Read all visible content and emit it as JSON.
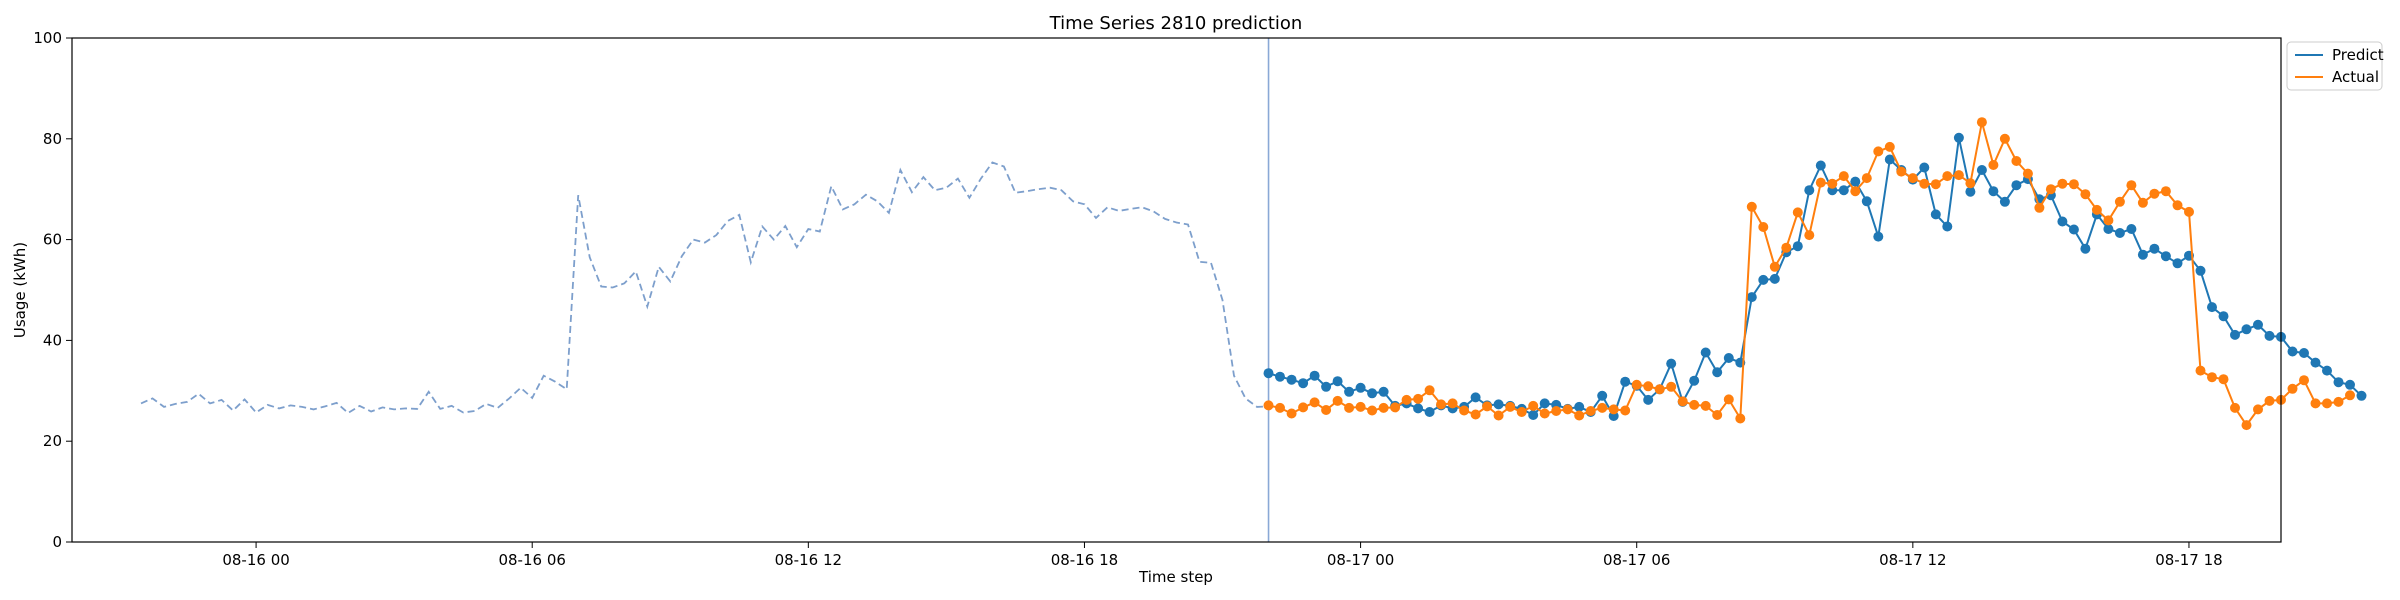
{
  "chart_data": {
    "type": "line",
    "title": "Time Series 2810 prediction",
    "xlabel": "Time step",
    "ylabel": "Usage (kWh)",
    "ylim": [
      0,
      100
    ],
    "yticks": [
      0,
      20,
      40,
      60,
      80,
      100
    ],
    "x_range_hours": [
      -4,
      44
    ],
    "xticks": [
      {
        "hour": 0,
        "label": "08-16 00"
      },
      {
        "hour": 6,
        "label": "08-16 06"
      },
      {
        "hour": 12,
        "label": "08-16 12"
      },
      {
        "hour": 18,
        "label": "08-16 18"
      },
      {
        "hour": 24,
        "label": "08-17 00"
      },
      {
        "hour": 30,
        "label": "08-17 06"
      },
      {
        "hour": 36,
        "label": "08-17 12"
      },
      {
        "hour": 42,
        "label": "08-17 18"
      }
    ],
    "forecast_start_hour": 22,
    "legend": {
      "position": "top-right outside",
      "entries": [
        "Predict",
        "Actual"
      ]
    },
    "colors": {
      "history": "#7d9fcc",
      "predict": "#1f77b4",
      "actual": "#ff7f0e",
      "divider": "#8aa8d6"
    },
    "series": [
      {
        "role": "history",
        "start_hour": -2.5,
        "step_hours": 0.25,
        "values": [
          27.5,
          28.5,
          26.8,
          27.4,
          27.8,
          29.4,
          27.5,
          28.2,
          26.1,
          28.3,
          25.7,
          27.2,
          26.5,
          27.1,
          26.8,
          26.3,
          26.9,
          27.6,
          25.6,
          27.0,
          25.9,
          26.7,
          26.3,
          26.5,
          26.4,
          29.8,
          26.4,
          27.0,
          25.7,
          26.0,
          27.4,
          26.6,
          28.5,
          30.6,
          28.6,
          33.0,
          31.8,
          30.3,
          68.8,
          56.5,
          50.7,
          50.5,
          51.3,
          53.7,
          46.7,
          54.6,
          51.7,
          56.7,
          60.0,
          59.4,
          60.9,
          63.7,
          64.9,
          55.5,
          62.6,
          60.0,
          62.7,
          58.5,
          62.1,
          61.6,
          70.6,
          66.0,
          67.0,
          68.9,
          67.6,
          65.3,
          73.8,
          69.4,
          72.4,
          69.8,
          70.3,
          72.1,
          68.3,
          72.1,
          75.3,
          74.5,
          69.3,
          69.6,
          70.0,
          70.3,
          69.8,
          67.6,
          67.0,
          64.3,
          66.4,
          65.7,
          66.1,
          66.4,
          65.6,
          64.1,
          63.4,
          63.0,
          55.6,
          55.4,
          48.0,
          33.0,
          28.5,
          26.8,
          26.9
        ]
      },
      {
        "name": "Predict",
        "start_hour": 22,
        "step_hours": 0.25,
        "values": [
          33.5,
          32.8,
          32.2,
          31.5,
          33.0,
          30.8,
          31.9,
          29.8,
          30.6,
          29.5,
          29.8,
          27.0,
          27.5,
          26.5,
          25.8,
          27.1,
          26.5,
          26.8,
          28.7,
          27.1,
          27.3,
          27.0,
          26.4,
          25.2,
          27.5,
          27.2,
          26.4,
          26.8,
          25.8,
          29.0,
          25.0,
          31.8,
          31.0,
          28.2,
          30.3,
          35.4,
          27.8,
          32.0,
          37.6,
          33.7,
          36.5,
          35.6,
          48.6,
          52.0,
          52.2,
          57.5,
          58.7,
          69.8,
          74.7,
          69.8,
          69.8,
          71.5,
          67.6,
          60.6,
          75.9,
          73.8,
          71.9,
          74.3,
          65.0,
          62.6,
          80.2,
          69.5,
          73.8,
          69.6,
          67.5,
          70.8,
          72.0,
          68.0,
          68.8,
          63.6,
          62.0,
          58.2,
          65.0,
          62.1,
          61.3,
          62.1,
          57.0,
          58.2,
          56.7,
          55.3,
          56.8,
          53.8,
          46.6,
          44.8,
          41.1,
          42.2,
          43.1,
          40.9,
          40.7,
          37.8,
          37.5,
          35.6,
          34.0,
          31.7,
          31.2,
          29.0
        ]
      },
      {
        "name": "Actual",
        "start_hour": 22,
        "step_hours": 0.25,
        "values": [
          27.1,
          26.6,
          25.5,
          26.7,
          27.7,
          26.2,
          28.0,
          26.6,
          26.8,
          26.1,
          26.6,
          26.7,
          28.2,
          28.4,
          30.1,
          27.3,
          27.5,
          26.1,
          25.3,
          26.9,
          25.1,
          26.8,
          25.8,
          27.0,
          25.5,
          26.0,
          26.3,
          25.1,
          26.0,
          26.6,
          26.3,
          26.1,
          31.2,
          30.9,
          30.3,
          30.8,
          27.9,
          27.2,
          27.0,
          25.2,
          28.3,
          24.5,
          66.5,
          62.5,
          54.6,
          58.4,
          65.4,
          60.9,
          71.3,
          71.1,
          72.6,
          69.6,
          72.2,
          77.5,
          78.4,
          73.5,
          72.2,
          71.1,
          71.0,
          72.6,
          72.8,
          71.2,
          83.3,
          74.8,
          80.0,
          75.6,
          73.1,
          66.3,
          70.0,
          71.1,
          71.0,
          69.0,
          65.9,
          63.8,
          67.5,
          70.8,
          67.3,
          69.1,
          69.6,
          66.8,
          65.5,
          34.0,
          32.7,
          32.3,
          26.6,
          23.2,
          26.3,
          28.0,
          28.2,
          30.4,
          32.1,
          27.5,
          27.5,
          27.8,
          29.1
        ]
      }
    ]
  }
}
